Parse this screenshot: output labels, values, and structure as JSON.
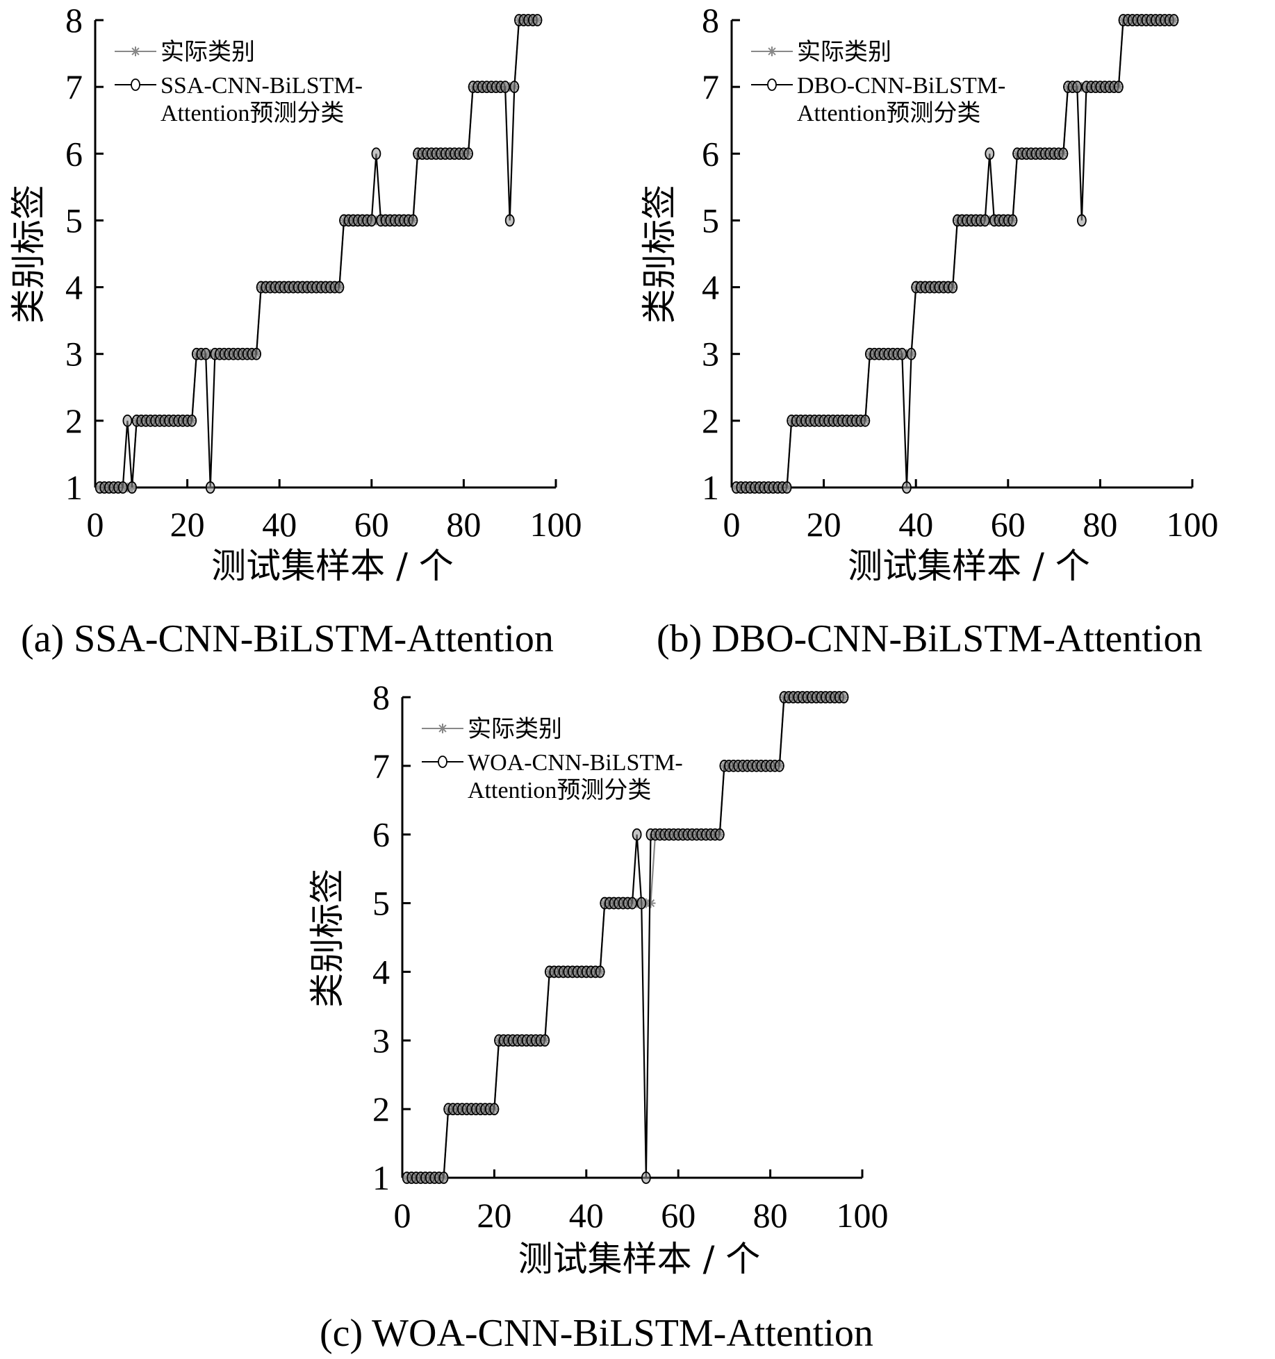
{
  "chart_data": [
    {
      "type": "line",
      "caption": "(a)  SSA-CNN-BiLSTM-Attention",
      "xlabel": "测试集样本 / 个",
      "ylabel": "类别标签",
      "xlim": [
        0,
        100
      ],
      "ylim": [
        1,
        8
      ],
      "xticks": [
        "0",
        "20",
        "40",
        "60",
        "80",
        "100"
      ],
      "yticks": [
        "1",
        "2",
        "3",
        "4",
        "5",
        "6",
        "7",
        "8"
      ],
      "legend": {
        "position": "top-left",
        "entries": [
          {
            "label": "实际类别"
          },
          {
            "label_lines": [
              "SSA-CNN-BiLSTM-",
              "Attention预测分类"
            ]
          }
        ]
      },
      "x": [
        1,
        2,
        3,
        4,
        5,
        6,
        7,
        8,
        9,
        10,
        11,
        12,
        13,
        14,
        15,
        16,
        17,
        18,
        19,
        20,
        21,
        22,
        23,
        24,
        25,
        26,
        27,
        28,
        29,
        30,
        31,
        32,
        33,
        34,
        35,
        36,
        37,
        38,
        39,
        40,
        41,
        42,
        43,
        44,
        45,
        46,
        47,
        48,
        49,
        50,
        51,
        52,
        53,
        54,
        55,
        56,
        57,
        58,
        59,
        60,
        61,
        62,
        63,
        64,
        65,
        66,
        67,
        68,
        69,
        70,
        71,
        72,
        73,
        74,
        75,
        76,
        77,
        78,
        79,
        80,
        81,
        82,
        83,
        84,
        85,
        86,
        87,
        88,
        89,
        90,
        91,
        92,
        93,
        94,
        95,
        96
      ],
      "series": [
        {
          "name": "实际类别",
          "color": "#888888",
          "marker": "star",
          "values": [
            1,
            1,
            1,
            1,
            1,
            1,
            1,
            1,
            2,
            2,
            2,
            2,
            2,
            2,
            2,
            2,
            2,
            2,
            2,
            2,
            2,
            3,
            3,
            3,
            3,
            3,
            3,
            3,
            3,
            3,
            3,
            3,
            3,
            3,
            3,
            4,
            4,
            4,
            4,
            4,
            4,
            4,
            4,
            4,
            4,
            4,
            4,
            4,
            4,
            4,
            4,
            4,
            4,
            5,
            5,
            5,
            5,
            5,
            5,
            5,
            5,
            5,
            5,
            5,
            5,
            5,
            5,
            5,
            5,
            6,
            6,
            6,
            6,
            6,
            6,
            6,
            6,
            6,
            6,
            6,
            6,
            7,
            7,
            7,
            7,
            7,
            7,
            7,
            7,
            7,
            7,
            8,
            8,
            8,
            8,
            8
          ]
        },
        {
          "name": "SSA-CNN-BiLSTM-Attention预测分类",
          "color": "#000000",
          "marker": "circle",
          "values": [
            1,
            1,
            1,
            1,
            1,
            1,
            2,
            1,
            2,
            2,
            2,
            2,
            2,
            2,
            2,
            2,
            2,
            2,
            2,
            2,
            2,
            3,
            3,
            3,
            1,
            3,
            3,
            3,
            3,
            3,
            3,
            3,
            3,
            3,
            3,
            4,
            4,
            4,
            4,
            4,
            4,
            4,
            4,
            4,
            4,
            4,
            4,
            4,
            4,
            4,
            4,
            4,
            4,
            5,
            5,
            5,
            5,
            5,
            5,
            5,
            6,
            5,
            5,
            5,
            5,
            5,
            5,
            5,
            5,
            6,
            6,
            6,
            6,
            6,
            6,
            6,
            6,
            6,
            6,
            6,
            6,
            7,
            7,
            7,
            7,
            7,
            7,
            7,
            7,
            5,
            7,
            8,
            8,
            8,
            8,
            8
          ]
        }
      ]
    },
    {
      "type": "line",
      "caption": "(b)  DBO-CNN-BiLSTM-Attention",
      "xlabel": "测试集样本 / 个",
      "ylabel": "类别标签",
      "xlim": [
        0,
        100
      ],
      "ylim": [
        1,
        8
      ],
      "xticks": [
        "0",
        "20",
        "40",
        "60",
        "80",
        "100"
      ],
      "yticks": [
        "1",
        "2",
        "3",
        "4",
        "5",
        "6",
        "7",
        "8"
      ],
      "legend": {
        "position": "top-left",
        "entries": [
          {
            "label": "实际类别"
          },
          {
            "label_lines": [
              "DBO-CNN-BiLSTM-",
              "Attention预测分类"
            ]
          }
        ]
      },
      "x": [
        1,
        2,
        3,
        4,
        5,
        6,
        7,
        8,
        9,
        10,
        11,
        12,
        13,
        14,
        15,
        16,
        17,
        18,
        19,
        20,
        21,
        22,
        23,
        24,
        25,
        26,
        27,
        28,
        29,
        30,
        31,
        32,
        33,
        34,
        35,
        36,
        37,
        38,
        39,
        40,
        41,
        42,
        43,
        44,
        45,
        46,
        47,
        48,
        49,
        50,
        51,
        52,
        53,
        54,
        55,
        56,
        57,
        58,
        59,
        60,
        61,
        62,
        63,
        64,
        65,
        66,
        67,
        68,
        69,
        70,
        71,
        72,
        73,
        74,
        75,
        76,
        77,
        78,
        79,
        80,
        81,
        82,
        83,
        84,
        85,
        86,
        87,
        88,
        89,
        90,
        91,
        92,
        93,
        94,
        95,
        96
      ],
      "series": [
        {
          "name": "实际类别",
          "color": "#888888",
          "marker": "star",
          "values": [
            1,
            1,
            1,
            1,
            1,
            1,
            1,
            1,
            1,
            1,
            1,
            1,
            2,
            2,
            2,
            2,
            2,
            2,
            2,
            2,
            2,
            2,
            2,
            2,
            2,
            2,
            2,
            2,
            2,
            3,
            3,
            3,
            3,
            3,
            3,
            3,
            3,
            3,
            3,
            4,
            4,
            4,
            4,
            4,
            4,
            4,
            4,
            4,
            5,
            5,
            5,
            5,
            5,
            5,
            5,
            5,
            5,
            5,
            5,
            5,
            5,
            6,
            6,
            6,
            6,
            6,
            6,
            6,
            6,
            6,
            6,
            6,
            7,
            7,
            7,
            7,
            7,
            7,
            7,
            7,
            7,
            7,
            7,
            7,
            8,
            8,
            8,
            8,
            8,
            8,
            8,
            8,
            8,
            8,
            8,
            8
          ]
        },
        {
          "name": "DBO-CNN-BiLSTM-Attention预测分类",
          "color": "#000000",
          "marker": "circle",
          "values": [
            1,
            1,
            1,
            1,
            1,
            1,
            1,
            1,
            1,
            1,
            1,
            1,
            2,
            2,
            2,
            2,
            2,
            2,
            2,
            2,
            2,
            2,
            2,
            2,
            2,
            2,
            2,
            2,
            2,
            3,
            3,
            3,
            3,
            3,
            3,
            3,
            3,
            1,
            3,
            4,
            4,
            4,
            4,
            4,
            4,
            4,
            4,
            4,
            5,
            5,
            5,
            5,
            5,
            5,
            5,
            6,
            5,
            5,
            5,
            5,
            5,
            6,
            6,
            6,
            6,
            6,
            6,
            6,
            6,
            6,
            6,
            6,
            7,
            7,
            7,
            5,
            7,
            7,
            7,
            7,
            7,
            7,
            7,
            7,
            8,
            8,
            8,
            8,
            8,
            8,
            8,
            8,
            8,
            8,
            8,
            8
          ]
        }
      ]
    },
    {
      "type": "line",
      "caption": "(c)  WOA-CNN-BiLSTM-Attention",
      "xlabel": "测试集样本 / 个",
      "ylabel": "类别标签",
      "xlim": [
        0,
        100
      ],
      "ylim": [
        1,
        8
      ],
      "xticks": [
        "0",
        "20",
        "40",
        "60",
        "80",
        "100"
      ],
      "yticks": [
        "1",
        "2",
        "3",
        "4",
        "5",
        "6",
        "7",
        "8"
      ],
      "legend": {
        "position": "top-left",
        "entries": [
          {
            "label": "实际类别"
          },
          {
            "label_lines": [
              "WOA-CNN-BiLSTM-",
              "Attention预测分类"
            ]
          }
        ]
      },
      "x": [
        1,
        2,
        3,
        4,
        5,
        6,
        7,
        8,
        9,
        10,
        11,
        12,
        13,
        14,
        15,
        16,
        17,
        18,
        19,
        20,
        21,
        22,
        23,
        24,
        25,
        26,
        27,
        28,
        29,
        30,
        31,
        32,
        33,
        34,
        35,
        36,
        37,
        38,
        39,
        40,
        41,
        42,
        43,
        44,
        45,
        46,
        47,
        48,
        49,
        50,
        51,
        52,
        53,
        54,
        55,
        56,
        57,
        58,
        59,
        60,
        61,
        62,
        63,
        64,
        65,
        66,
        67,
        68,
        69,
        70,
        71,
        72,
        73,
        74,
        75,
        76,
        77,
        78,
        79,
        80,
        81,
        82,
        83,
        84,
        85,
        86,
        87,
        88,
        89,
        90,
        91,
        92,
        93,
        94,
        95,
        96
      ],
      "series": [
        {
          "name": "实际类别",
          "color": "#888888",
          "marker": "star",
          "values": [
            1,
            1,
            1,
            1,
            1,
            1,
            1,
            1,
            1,
            2,
            2,
            2,
            2,
            2,
            2,
            2,
            2,
            2,
            2,
            2,
            3,
            3,
            3,
            3,
            3,
            3,
            3,
            3,
            3,
            3,
            3,
            4,
            4,
            4,
            4,
            4,
            4,
            4,
            4,
            4,
            4,
            4,
            4,
            5,
            5,
            5,
            5,
            5,
            5,
            5,
            5,
            5,
            5,
            5,
            6,
            6,
            6,
            6,
            6,
            6,
            6,
            6,
            6,
            6,
            6,
            6,
            6,
            6,
            6,
            7,
            7,
            7,
            7,
            7,
            7,
            7,
            7,
            7,
            7,
            7,
            7,
            7,
            8,
            8,
            8,
            8,
            8,
            8,
            8,
            8,
            8,
            8,
            8,
            8,
            8,
            8
          ]
        },
        {
          "name": "WOA-CNN-BiLSTM-Attention预测分类",
          "color": "#000000",
          "marker": "circle",
          "values": [
            1,
            1,
            1,
            1,
            1,
            1,
            1,
            1,
            1,
            2,
            2,
            2,
            2,
            2,
            2,
            2,
            2,
            2,
            2,
            2,
            3,
            3,
            3,
            3,
            3,
            3,
            3,
            3,
            3,
            3,
            3,
            4,
            4,
            4,
            4,
            4,
            4,
            4,
            4,
            4,
            4,
            4,
            4,
            5,
            5,
            5,
            5,
            5,
            5,
            5,
            6,
            5,
            1,
            6,
            6,
            6,
            6,
            6,
            6,
            6,
            6,
            6,
            6,
            6,
            6,
            6,
            6,
            6,
            6,
            7,
            7,
            7,
            7,
            7,
            7,
            7,
            7,
            7,
            7,
            7,
            7,
            7,
            8,
            8,
            8,
            8,
            8,
            8,
            8,
            8,
            8,
            8,
            8,
            8,
            8,
            8
          ]
        }
      ]
    }
  ]
}
